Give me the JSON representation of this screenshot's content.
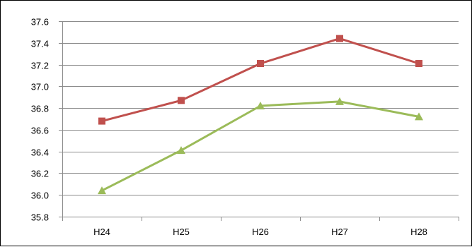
{
  "chart_data": {
    "type": "line",
    "title": "",
    "xlabel": "",
    "ylabel": "",
    "categories": [
      "H24",
      "H25",
      "H26",
      "H27",
      "H28"
    ],
    "ylim": [
      35.8,
      37.6
    ],
    "yticks": [
      "35.8",
      "36.0",
      "36.2",
      "36.4",
      "36.6",
      "36.8",
      "37.0",
      "37.2",
      "37.4",
      "37.6"
    ],
    "grid": true,
    "legend": "none",
    "series": [
      {
        "color": "#C0504D",
        "marker": "square",
        "values": [
          36.68,
          36.87,
          37.21,
          37.44,
          37.21
        ]
      },
      {
        "color": "#9BBB59",
        "marker": "triangle",
        "values": [
          36.04,
          36.41,
          36.82,
          36.86,
          36.72
        ]
      }
    ]
  }
}
